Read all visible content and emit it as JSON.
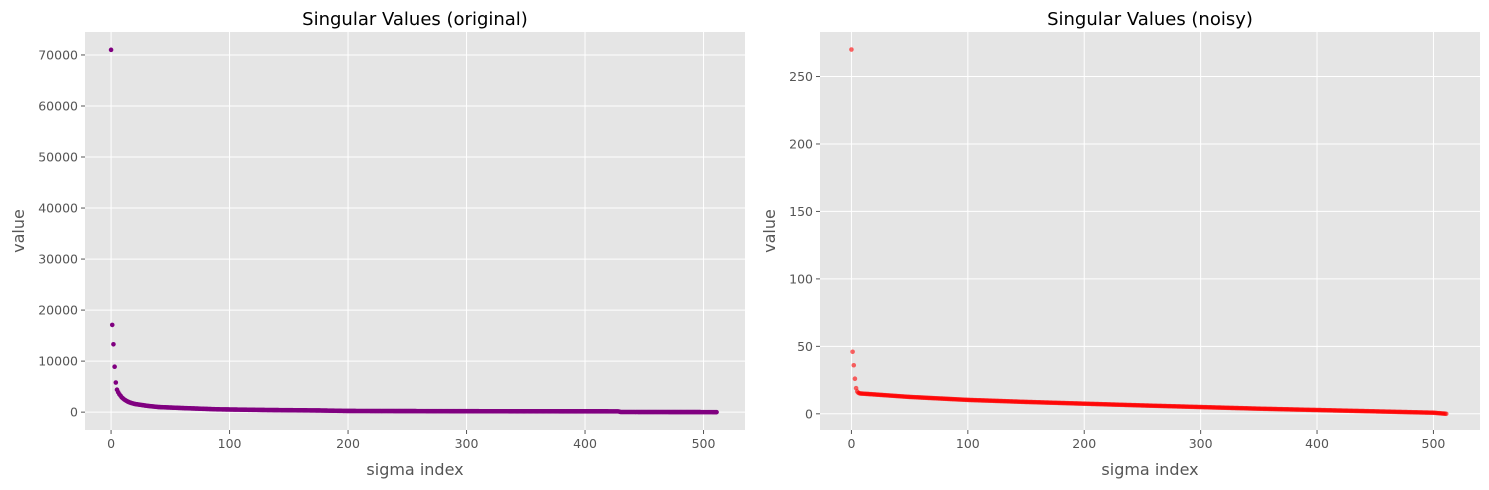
{
  "chart_data": [
    {
      "type": "scatter",
      "title": "Singular Values (original)",
      "xlabel": "sigma index",
      "ylabel": "value",
      "xlim": [
        -22,
        535
      ],
      "ylim": [
        -3500,
        74500
      ],
      "x_ticks": [
        0,
        100,
        200,
        300,
        400,
        500
      ],
      "x_tick_labels": [
        "0",
        "100",
        "200",
        "300",
        "400",
        "500"
      ],
      "y_ticks": [
        0,
        10000,
        20000,
        30000,
        40000,
        50000,
        60000,
        70000
      ],
      "y_tick_labels": [
        "0",
        "10000",
        "20000",
        "30000",
        "40000",
        "50000",
        "60000",
        "70000"
      ],
      "grid": true,
      "color": "#800080",
      "series": [
        {
          "n": 512,
          "x_start": 0,
          "x_step": 1,
          "head_values": [
            71000,
            17100,
            13300,
            8900,
            5800,
            4400,
            3900,
            3500,
            3200,
            2900,
            2700,
            2500,
            2350,
            2200,
            2080,
            1970,
            1880,
            1800,
            1730,
            1670
          ],
          "profile": [
            [
              20,
              1600
            ],
            [
              30,
              1250
            ],
            [
              40,
              1000
            ],
            [
              60,
              800
            ],
            [
              90,
              550
            ],
            [
              130,
              420
            ],
            [
              175,
              330
            ],
            [
              200,
              230
            ],
            [
              300,
              180
            ],
            [
              428,
              150
            ],
            [
              430,
              30
            ],
            [
              511,
              0
            ]
          ]
        }
      ]
    },
    {
      "type": "scatter",
      "title": "Singular Values (noisy)",
      "xlabel": "sigma index",
      "ylabel": "value",
      "xlim": [
        -27,
        540
      ],
      "ylim": [
        -12,
        283
      ],
      "x_ticks": [
        0,
        100,
        200,
        300,
        400,
        500
      ],
      "x_tick_labels": [
        "0",
        "100",
        "200",
        "300",
        "400",
        "500"
      ],
      "y_ticks": [
        0,
        50,
        100,
        150,
        200,
        250
      ],
      "y_tick_labels": [
        "0",
        "50",
        "100",
        "150",
        "200",
        "250"
      ],
      "grid": true,
      "color": "#ff0000",
      "series": [
        {
          "n": 512,
          "x_start": 0,
          "x_step": 1,
          "head_values": [
            270,
            46,
            36,
            26,
            19,
            16.5,
            15.5,
            15.2,
            15
          ],
          "profile": [
            [
              9,
              15
            ],
            [
              50,
              12.5
            ],
            [
              100,
              10.3
            ],
            [
              150,
              8.8
            ],
            [
              200,
              7.5
            ],
            [
              250,
              6.2
            ],
            [
              300,
              5
            ],
            [
              350,
              3.8
            ],
            [
              400,
              2.8
            ],
            [
              450,
              1.8
            ],
            [
              500,
              0.8
            ],
            [
              511,
              0
            ]
          ]
        }
      ]
    }
  ]
}
